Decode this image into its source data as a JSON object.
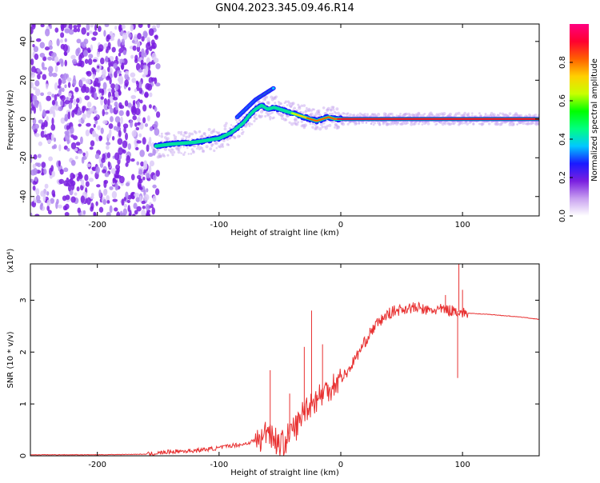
{
  "figure": {
    "title": "GN04.2023.345.09.46.R14"
  },
  "chart_data": [
    {
      "type": "heatmap",
      "title": "GN04.2023.345.09.46.R14",
      "xlabel": "Height of straight line (km)",
      "ylabel": "Frequency (Hz)",
      "xlim": [
        -255,
        163
      ],
      "ylim": [
        -50,
        49
      ],
      "x_ticks": [
        -200,
        -100,
        0,
        100
      ],
      "y_ticks": [
        -40,
        -20,
        0,
        20,
        40
      ],
      "colorbar": {
        "label": "Normalized spectral amplitude",
        "range": [
          0,
          1
        ],
        "ticks": [
          "0.0",
          "0.2",
          "0.4",
          "0.6",
          "0.8"
        ],
        "colors": [
          "#ffffff",
          "#c8a0f0",
          "#7a1fe0",
          "#1a1aff",
          "#00c8ff",
          "#00ff80",
          "#00ff00",
          "#c8ff00",
          "#ffd000",
          "#ff6000",
          "#ff0030",
          "#ff0080"
        ]
      },
      "noise_region": {
        "x_range": [
          -255,
          -150
        ],
        "amplitude": 0.2
      },
      "ridge": {
        "x": [
          -152,
          -140,
          -120,
          -100,
          -90,
          -80,
          -75,
          -70,
          -65,
          -60,
          -55,
          -50,
          -45,
          -40,
          -35,
          -30,
          -25,
          -20,
          -15,
          -10,
          -5,
          0,
          20,
          40,
          60,
          80,
          100,
          120,
          140,
          163
        ],
        "frequency": [
          -14,
          -13,
          -12,
          -10,
          -7,
          -2,
          2,
          5,
          7,
          5,
          6,
          5,
          4,
          3,
          2,
          1,
          0,
          -1,
          0,
          1,
          0,
          0,
          0,
          0,
          0,
          0,
          0,
          0,
          0,
          0
        ],
        "amplitude": [
          0.45,
          0.45,
          0.45,
          0.5,
          0.45,
          0.4,
          0.4,
          0.4,
          0.4,
          0.45,
          0.5,
          0.55,
          0.6,
          0.65,
          0.7,
          0.75,
          0.8,
          0.8,
          0.85,
          0.85,
          0.85,
          0.88,
          0.88,
          0.88,
          0.88,
          0.88,
          0.88,
          0.88,
          0.88,
          0.88
        ]
      },
      "upper_branch": {
        "x": [
          -85,
          -80,
          -75,
          -70,
          -65,
          -60,
          -55
        ],
        "frequency": [
          1,
          4,
          7,
          10,
          12,
          14,
          16
        ],
        "amplitude": [
          0.35,
          0.38,
          0.4,
          0.4,
          0.42,
          0.45,
          0.4
        ]
      },
      "grid": false
    },
    {
      "type": "line",
      "xlabel": "Height of straight line (km)",
      "ylabel": "SNR (10 * v/v)",
      "y_multiplier": "(x10⁴)",
      "xlim": [
        -255,
        163
      ],
      "ylim": [
        0,
        3.7
      ],
      "x_ticks": [
        -200,
        -100,
        0,
        100
      ],
      "y_ticks": [
        0,
        1,
        2,
        3
      ],
      "color": "#e83030",
      "series": [
        {
          "x": [
            -255,
            -200,
            -160,
            -150,
            -140,
            -120,
            -100,
            -90,
            -80,
            -70,
            -65,
            -60,
            -55,
            -50,
            -45,
            -40,
            -35,
            -30,
            -25,
            -20,
            -15,
            -10,
            -5,
            0,
            5,
            10,
            15,
            20,
            25,
            30,
            35,
            40,
            45,
            50,
            55,
            60,
            65,
            70,
            75,
            80,
            85,
            90,
            95,
            100,
            105,
            110,
            120,
            130,
            140,
            150,
            163
          ],
          "values": [
            0.02,
            0.02,
            0.03,
            0.05,
            0.08,
            0.1,
            0.15,
            0.2,
            0.22,
            0.3,
            0.3,
            0.55,
            0.35,
            0.2,
            0.3,
            0.5,
            0.6,
            0.9,
            1.0,
            1.1,
            1.2,
            1.3,
            1.4,
            1.5,
            1.6,
            1.8,
            2.0,
            2.2,
            2.4,
            2.55,
            2.65,
            2.75,
            2.8,
            2.82,
            2.85,
            2.85,
            2.85,
            2.8,
            2.8,
            2.82,
            2.82,
            2.8,
            2.8,
            2.75,
            2.75,
            2.74,
            2.73,
            2.71,
            2.69,
            2.67,
            2.63
          ]
        }
      ],
      "spikes": [
        {
          "x": -58,
          "value": 1.65
        },
        {
          "x": -42,
          "value": 1.2
        },
        {
          "x": -24,
          "value": 2.8
        },
        {
          "x": -30,
          "value": 2.1
        },
        {
          "x": -15,
          "value": 2.15
        },
        {
          "x": 86,
          "value": 3.1
        },
        {
          "x": 97,
          "value": 3.7
        },
        {
          "x": 96,
          "value": 1.5
        },
        {
          "x": 100,
          "value": 3.2
        }
      ],
      "grid": false
    }
  ]
}
